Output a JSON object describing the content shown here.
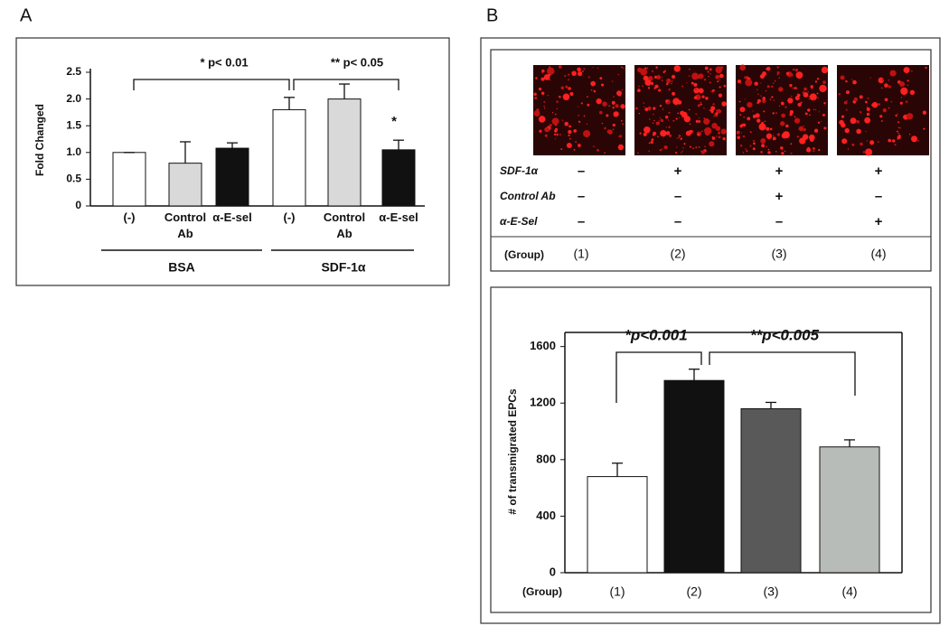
{
  "chart_data": [
    {
      "type": "bar",
      "panel": "A",
      "ylabel": "Fold Changed",
      "categories": [
        "(-)",
        "Control Ab",
        "α-E-sel",
        "(-)",
        "Control Ab",
        "α-E-sel"
      ],
      "groups": [
        "BSA",
        "SDF-1α"
      ],
      "values": [
        1.0,
        0.8,
        1.08,
        1.8,
        2.0,
        1.05
      ],
      "errors": [
        0,
        0.4,
        0.1,
        0.23,
        0.28,
        0.18
      ],
      "colors": [
        "#ffffff",
        "#d9d9d9",
        "#111111",
        "#ffffff",
        "#d9d9d9",
        "#111111"
      ],
      "ylim": [
        0,
        2.5
      ],
      "yticks": [
        0,
        0.5,
        {
          "value": 1,
          "label": "1.0"
        },
        1.5,
        {
          "value": 2,
          "label": "2.0"
        },
        2.5
      ],
      "annotations": [
        "* p< 0.01",
        "** p< 0.05",
        "*"
      ]
    },
    {
      "type": "bar",
      "panel": "B",
      "ylabel": "# of transmigrated EPCs",
      "xlabel": "(Group)",
      "categories": [
        "(1)",
        "(2)",
        "(3)",
        "(4)"
      ],
      "values": [
        680,
        1360,
        1160,
        890
      ],
      "errors": [
        95,
        80,
        45,
        50
      ],
      "colors": [
        "#ffffff",
        "#111111",
        "#595959",
        "#b8bcb8"
      ],
      "ylim": [
        0,
        1700
      ],
      "yticks": [
        0,
        400,
        800,
        1200,
        1600
      ],
      "annotations": [
        "*p<0.001",
        "**p<0.005"
      ]
    }
  ],
  "treatment_table": {
    "rows": [
      {
        "label": "SDF-1α",
        "cells": [
          "–",
          "+",
          "+",
          "+"
        ]
      },
      {
        "label": "Control Ab",
        "cells": [
          "–",
          "–",
          "+",
          "–"
        ]
      },
      {
        "label": "α-E-Sel",
        "cells": [
          "–",
          "–",
          "–",
          "+"
        ]
      }
    ],
    "group_label": "(Group)",
    "groups": [
      "(1)",
      "(2)",
      "(3)",
      "(4)"
    ]
  }
}
